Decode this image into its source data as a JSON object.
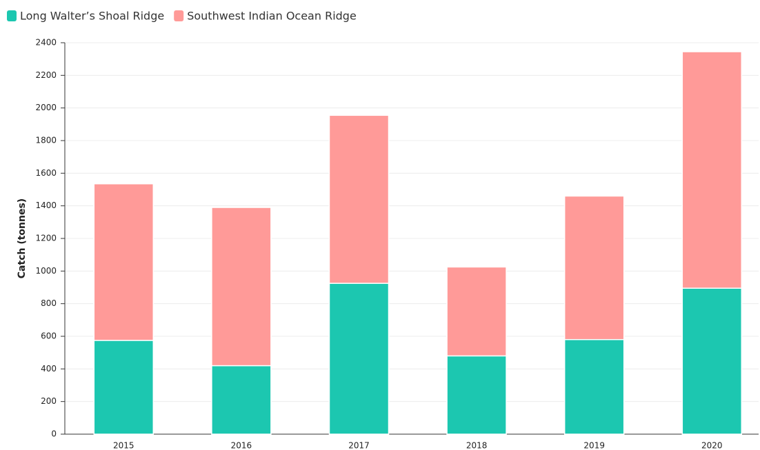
{
  "chart_data": {
    "type": "stacked_bar",
    "y_label": "Catch (tonnes)",
    "categories": [
      "2015",
      "2016",
      "2017",
      "2018",
      "2019",
      "2020"
    ],
    "series": [
      {
        "name": "Long Walter’s Shoal Ridge",
        "color": "#1cc7b0",
        "values": [
          575,
          420,
          925,
          480,
          580,
          895
        ]
      },
      {
        "name": "Southwest Indian Ocean Ridge",
        "color": "#ff9a98",
        "values": [
          960,
          970,
          1030,
          545,
          880,
          1450
        ]
      }
    ],
    "ylim": [
      0,
      2400
    ],
    "yticks": [
      0,
      200,
      400,
      600,
      800,
      1000,
      1200,
      1400,
      1600,
      1800,
      2000,
      2200,
      2400
    ],
    "grid": true
  }
}
